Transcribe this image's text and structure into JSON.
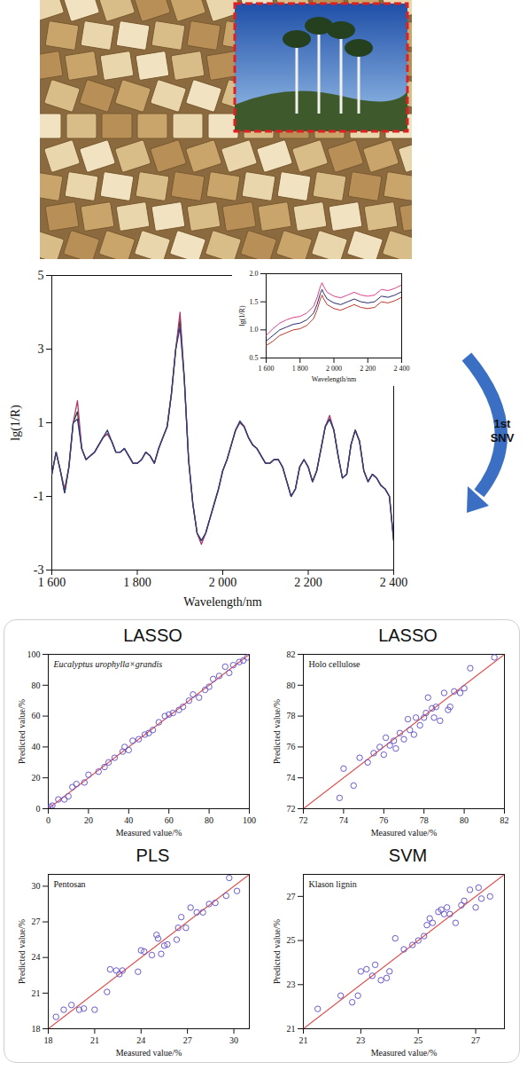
{
  "chart_data": [
    {
      "type": "line",
      "xlabel": "Wavelength/nm",
      "ylabel": "lg(1/R)",
      "annotation": "1st SNV",
      "grid": false,
      "xlim": [
        1600,
        2400
      ],
      "xticks": [
        {
          "value": 1600,
          "label": "1 600"
        },
        {
          "value": 1800,
          "label": "1 800"
        },
        {
          "value": 2000,
          "label": "2 000"
        },
        {
          "value": 2200,
          "label": "2 200"
        },
        {
          "value": 2400,
          "label": "2 400"
        }
      ],
      "ylim": [
        -3,
        5
      ],
      "yticks": [
        -3,
        -1,
        1,
        3,
        5
      ],
      "x": [
        1600,
        1610,
        1620,
        1630,
        1640,
        1650,
        1660,
        1670,
        1680,
        1690,
        1700,
        1710,
        1720,
        1730,
        1740,
        1750,
        1760,
        1770,
        1780,
        1790,
        1800,
        1810,
        1820,
        1830,
        1840,
        1850,
        1860,
        1870,
        1880,
        1890,
        1900,
        1910,
        1920,
        1930,
        1940,
        1950,
        1960,
        1970,
        1980,
        1990,
        2000,
        2010,
        2020,
        2030,
        2040,
        2050,
        2060,
        2070,
        2080,
        2090,
        2100,
        2110,
        2120,
        2130,
        2140,
        2150,
        2160,
        2170,
        2180,
        2190,
        2200,
        2210,
        2220,
        2230,
        2240,
        2250,
        2260,
        2270,
        2280,
        2290,
        2300,
        2310,
        2320,
        2330,
        2340,
        2350,
        2360,
        2370,
        2380,
        2390,
        2400
      ],
      "series": [
        {
          "color": "#2f3a2a",
          "values": [
            -0.4,
            0.2,
            -0.3,
            -0.9,
            -0.2,
            1.0,
            1.3,
            0.3,
            0.0,
            0.1,
            0.2,
            0.4,
            0.6,
            0.7,
            0.5,
            0.2,
            0.2,
            0.3,
            0.1,
            -0.1,
            -0.1,
            0.0,
            0.2,
            0.1,
            -0.1,
            0.3,
            0.6,
            0.9,
            1.8,
            3.0,
            3.8,
            2.2,
            0.0,
            -1.2,
            -2.0,
            -2.2,
            -2.0,
            -1.6,
            -1.2,
            -0.8,
            -0.3,
            0.0,
            0.4,
            0.8,
            1.0,
            0.9,
            0.6,
            0.4,
            0.3,
            0.1,
            -0.1,
            -0.1,
            0.0,
            0.0,
            -0.2,
            -0.6,
            -1.0,
            -0.8,
            -0.2,
            0.0,
            -0.2,
            -0.6,
            -0.3,
            0.3,
            0.9,
            1.1,
            0.8,
            0.1,
            -0.5,
            -0.4,
            0.4,
            0.8,
            0.5,
            -0.3,
            -0.6,
            -0.4,
            -0.5,
            -0.7,
            -0.8,
            -1.0,
            -2.2
          ]
        },
        {
          "color": "#b03a6e",
          "values": [
            -0.4,
            0.2,
            -0.3,
            -0.8,
            -0.2,
            1.0,
            1.6,
            0.3,
            0.0,
            0.1,
            0.2,
            0.4,
            0.6,
            0.7,
            0.5,
            0.2,
            0.2,
            0.3,
            0.1,
            -0.1,
            -0.1,
            0.0,
            0.2,
            0.1,
            -0.1,
            0.3,
            0.6,
            0.9,
            1.8,
            3.0,
            4.0,
            2.2,
            0.0,
            -1.2,
            -2.0,
            -2.3,
            -2.0,
            -1.6,
            -1.2,
            -0.8,
            -0.3,
            0.0,
            0.4,
            0.8,
            1.0,
            0.9,
            0.6,
            0.4,
            0.3,
            0.1,
            -0.1,
            -0.1,
            0.0,
            0.0,
            -0.2,
            -0.6,
            -1.0,
            -0.8,
            -0.2,
            0.0,
            -0.2,
            -0.6,
            -0.3,
            0.3,
            0.9,
            1.2,
            0.8,
            0.1,
            -0.5,
            -0.4,
            0.4,
            0.8,
            0.5,
            -0.3,
            -0.6,
            -0.4,
            -0.5,
            -0.7,
            -0.8,
            -1.0,
            -2.2
          ]
        },
        {
          "color": "#2b3f7a",
          "values": [
            -0.4,
            0.2,
            -0.3,
            -0.9,
            -0.2,
            1.0,
            1.1,
            0.3,
            0.0,
            0.1,
            0.2,
            0.4,
            0.6,
            0.8,
            0.5,
            0.2,
            0.2,
            0.3,
            0.1,
            -0.1,
            -0.1,
            0.0,
            0.2,
            0.1,
            -0.1,
            0.3,
            0.6,
            0.9,
            1.8,
            3.0,
            3.6,
            2.2,
            0.0,
            -1.2,
            -2.0,
            -2.2,
            -2.0,
            -1.6,
            -1.2,
            -0.8,
            -0.3,
            0.0,
            0.4,
            0.8,
            1.05,
            0.9,
            0.6,
            0.4,
            0.3,
            0.1,
            -0.1,
            -0.1,
            0.0,
            0.0,
            -0.2,
            -0.6,
            -1.0,
            -0.8,
            -0.2,
            0.0,
            -0.2,
            -0.6,
            -0.3,
            0.3,
            0.9,
            1.1,
            0.8,
            0.1,
            -0.5,
            -0.4,
            0.4,
            0.8,
            0.5,
            -0.3,
            -0.6,
            -0.4,
            -0.5,
            -0.7,
            -0.8,
            -1.0,
            -2.2
          ]
        }
      ]
    },
    {
      "type": "line",
      "xlabel": "Wavelength/nm",
      "ylabel": "lg(1/R)",
      "grid": false,
      "xlim": [
        1600,
        2400
      ],
      "xticks": [
        {
          "value": 1600,
          "label": "1 600"
        },
        {
          "value": 1800,
          "label": "1 800"
        },
        {
          "value": 2000,
          "label": "2 000"
        },
        {
          "value": 2200,
          "label": "2 200"
        },
        {
          "value": 2400,
          "label": "2 400"
        }
      ],
      "ylim": [
        0.5,
        2.0
      ],
      "yticks": [
        0.5,
        {
          "value": 1,
          "label": "1.0"
        },
        1.5,
        {
          "value": 2,
          "label": "2.0"
        }
      ],
      "x": [
        1600,
        1640,
        1680,
        1720,
        1760,
        1800,
        1840,
        1880,
        1900,
        1920,
        1930,
        1940,
        1960,
        2000,
        2040,
        2080,
        2120,
        2160,
        2200,
        2240,
        2280,
        2320,
        2360,
        2400
      ],
      "series": [
        {
          "color": "#e0408a",
          "values": [
            0.9,
            1.02,
            1.12,
            1.18,
            1.22,
            1.24,
            1.3,
            1.42,
            1.57,
            1.77,
            1.84,
            1.77,
            1.67,
            1.6,
            1.57,
            1.62,
            1.67,
            1.62,
            1.6,
            1.62,
            1.72,
            1.7,
            1.74,
            1.8
          ]
        },
        {
          "color": "#2b2b6b",
          "values": [
            0.8,
            0.9,
            1.0,
            1.05,
            1.1,
            1.12,
            1.18,
            1.3,
            1.45,
            1.65,
            1.72,
            1.65,
            1.55,
            1.48,
            1.45,
            1.5,
            1.55,
            1.5,
            1.48,
            1.5,
            1.6,
            1.58,
            1.62,
            1.68
          ]
        },
        {
          "color": "#c0392b",
          "values": [
            0.72,
            0.8,
            0.9,
            0.95,
            1.0,
            1.02,
            1.08,
            1.2,
            1.35,
            1.55,
            1.62,
            1.55,
            1.45,
            1.38,
            1.35,
            1.4,
            1.45,
            1.4,
            1.38,
            1.4,
            1.5,
            1.48,
            1.52,
            1.58
          ]
        }
      ]
    },
    {
      "type": "scatter",
      "title": "LASSO",
      "subtitle": "Eucalyptus urophylla×grandis",
      "xlabel": "Measured value/%",
      "ylabel": "Predicted value/%",
      "grid": false,
      "color": "#6a5acd",
      "marker": "open circle",
      "xlim": [
        0,
        100
      ],
      "xticks": [
        0,
        20,
        40,
        60,
        80,
        100
      ],
      "ylim": [
        0,
        100
      ],
      "yticks": [
        0,
        20,
        40,
        60,
        80,
        100
      ],
      "x": [
        0,
        1,
        2,
        5,
        8,
        10,
        12,
        14,
        18,
        20,
        25,
        28,
        30,
        33,
        37,
        38,
        40,
        42,
        45,
        48,
        50,
        52,
        55,
        58,
        60,
        62,
        65,
        67,
        70,
        72,
        75,
        78,
        80,
        82,
        85,
        88,
        90,
        92,
        95,
        97,
        99
      ],
      "values": [
        0,
        1,
        2,
        6,
        6,
        8,
        14,
        16,
        17,
        22,
        24,
        27,
        30,
        33,
        37,
        40,
        38,
        44,
        45,
        48,
        49,
        51,
        56,
        60,
        61,
        62,
        64,
        66,
        70,
        74,
        72,
        77,
        79,
        84,
        86,
        92,
        88,
        93,
        95,
        96,
        98
      ],
      "fit_line": {
        "color": "#e05050",
        "x": [
          0,
          100
        ],
        "values": [
          0,
          100
        ]
      }
    },
    {
      "type": "scatter",
      "title": "LASSO",
      "subtitle": "Holo cellulose",
      "xlabel": "Measured value/%",
      "ylabel": "Predicted value/%",
      "grid": false,
      "color": "#6a5acd",
      "marker": "open circle",
      "xlim": [
        72,
        82
      ],
      "xticks": [
        72,
        74,
        76,
        78,
        80,
        82
      ],
      "ylim": [
        72,
        82
      ],
      "yticks": [
        72,
        74,
        76,
        78,
        80,
        82
      ],
      "x": [
        73.8,
        74,
        74.5,
        74.8,
        75.2,
        75.5,
        75.8,
        76,
        76.1,
        76.3,
        76.5,
        76.6,
        76.8,
        77,
        77.2,
        77.3,
        77.5,
        77.6,
        77.8,
        78,
        78.1,
        78.2,
        78.4,
        78.5,
        78.6,
        78.8,
        79,
        79.2,
        79.3,
        79.5,
        79.8,
        80,
        80.3,
        81.5
      ],
      "values": [
        72.7,
        74.6,
        73.5,
        75.3,
        75,
        75.6,
        76,
        75.5,
        76.6,
        76.1,
        76.4,
        75.9,
        76.9,
        76.5,
        77.8,
        77.1,
        76.8,
        77.9,
        77.4,
        77.9,
        78.2,
        79.2,
        78.5,
        77.9,
        78.6,
        77.7,
        79.5,
        78.4,
        78.6,
        79.6,
        79.5,
        79.8,
        81.1,
        81.8
      ],
      "fit_line": {
        "color": "#e05050",
        "x": [
          72,
          82
        ],
        "values": [
          72,
          82
        ]
      }
    },
    {
      "type": "scatter",
      "title": "PLS",
      "subtitle": "Pentosan",
      "xlabel": "Measured value/%",
      "ylabel": "Predicted value/%",
      "grid": false,
      "color": "#6a5acd",
      "marker": "open circle",
      "xlim": [
        18,
        31
      ],
      "xticks": [
        18,
        21,
        24,
        27,
        30
      ],
      "ylim": [
        18,
        31
      ],
      "yticks": [
        18,
        21,
        24,
        27,
        30
      ],
      "x": [
        18.5,
        19,
        19.5,
        20,
        20.3,
        21,
        21.8,
        22,
        22.4,
        22.6,
        22.8,
        23.8,
        24,
        24.2,
        24.7,
        25,
        25.1,
        25.3,
        25.5,
        25.7,
        26.3,
        26.4,
        26.6,
        26.9,
        27.2,
        27.6,
        28,
        28.4,
        28.8,
        29.5,
        29.7,
        30.2
      ],
      "values": [
        19,
        19.6,
        20,
        19.6,
        19.7,
        19.6,
        21.1,
        23,
        22.9,
        22.6,
        22.9,
        22.8,
        24.6,
        24.5,
        24.2,
        25.9,
        25.6,
        24.3,
        25,
        25.1,
        25.5,
        26.5,
        27.4,
        26.5,
        28.2,
        27.8,
        27.8,
        28.5,
        28.6,
        29.2,
        30.7,
        29.6
      ],
      "fit_line": {
        "color": "#e05050",
        "x": [
          18,
          31
        ],
        "values": [
          18,
          31
        ]
      }
    },
    {
      "type": "scatter",
      "title": "SVM",
      "subtitle": "Klason lignin",
      "xlabel": "Measured value/%",
      "ylabel": "Predicted value/%",
      "grid": false,
      "color": "#6a5acd",
      "marker": "open circle",
      "xlim": [
        21,
        28
      ],
      "xticks": [
        21,
        23,
        25,
        27
      ],
      "ylim": [
        21,
        28
      ],
      "yticks": [
        21,
        23,
        25,
        27
      ],
      "x": [
        21.5,
        22.3,
        22.7,
        22.9,
        23,
        23.2,
        23.4,
        23.5,
        23.7,
        23.9,
        24,
        24.2,
        24.5,
        24.8,
        25,
        25.2,
        25.3,
        25.4,
        25.5,
        25.7,
        25.8,
        25.9,
        26,
        26.1,
        26.3,
        26.5,
        26.6,
        26.8,
        27,
        27.1,
        27.2,
        27.5
      ],
      "values": [
        21.9,
        22.5,
        22.2,
        22.5,
        23.6,
        23.7,
        23.4,
        23.9,
        23.2,
        23.3,
        23.6,
        25.1,
        24.6,
        24.8,
        25,
        25.2,
        25.7,
        26,
        25.8,
        26.3,
        26.4,
        26.2,
        26.5,
        26.2,
        25.8,
        26.6,
        26.8,
        27.3,
        26.5,
        27.4,
        26.9,
        27
      ],
      "fit_line": {
        "color": "#e05050",
        "x": [
          21,
          28
        ],
        "values": [
          21,
          28
        ]
      }
    }
  ]
}
